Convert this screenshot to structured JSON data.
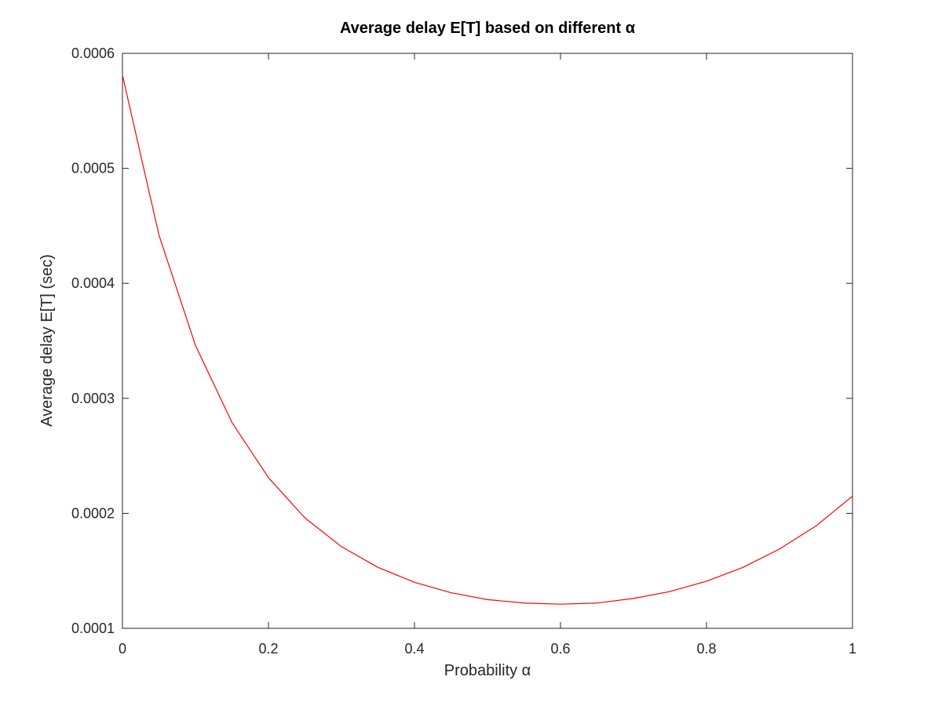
{
  "chart_data": {
    "type": "line",
    "title": "Average delay E[T] based on different α",
    "xlabel": "Probability α",
    "ylabel": "Average delay E[T] (sec)",
    "xlim": [
      0,
      1
    ],
    "ylim": [
      0.0001,
      0.0006
    ],
    "x_ticks": [
      0,
      0.2,
      0.4,
      0.6,
      0.8,
      1
    ],
    "x_tick_labels": [
      "0",
      "0.2",
      "0.4",
      "0.6",
      "0.8",
      "1"
    ],
    "y_ticks": [
      0.0001,
      0.0002,
      0.0003,
      0.0004,
      0.0005,
      0.0006
    ],
    "y_tick_labels": [
      "0.0001",
      "0.0002",
      "0.0003",
      "0.0004",
      "0.0005",
      "0.0006"
    ],
    "grid": false,
    "legend": "none",
    "series": [
      {
        "color": "#ff0000",
        "x": [
          0,
          0.05,
          0.1,
          0.15,
          0.2,
          0.25,
          0.3,
          0.35,
          0.4,
          0.45,
          0.5,
          0.55,
          0.6,
          0.65,
          0.7,
          0.75,
          0.8,
          0.85,
          0.9,
          0.95,
          1
        ],
        "y": [
          0.000581,
          0.000442,
          0.000346,
          0.000279,
          0.000231,
          0.000196,
          0.000171,
          0.000153,
          0.00014,
          0.000131,
          0.000125,
          0.000122,
          0.000121,
          0.000122,
          0.000126,
          0.000132,
          0.000141,
          0.000153,
          0.000169,
          0.000189,
          0.000215
        ]
      }
    ]
  }
}
